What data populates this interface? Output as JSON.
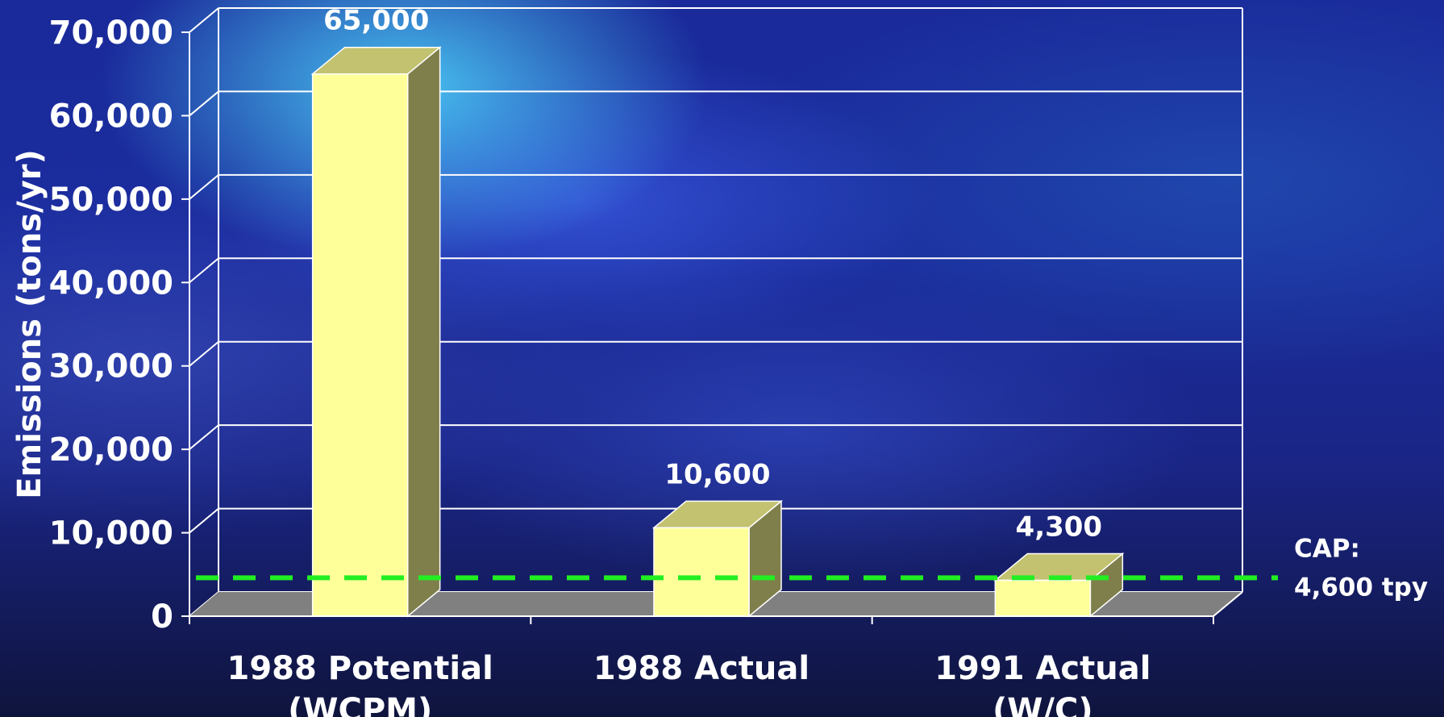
{
  "chart_data": {
    "type": "bar",
    "ylabel": "Emissions (tons/yr)",
    "ylim": [
      0,
      70000
    ],
    "yticks": [
      {
        "value": 0,
        "label": "0"
      },
      {
        "value": 10000,
        "label": "10,000"
      },
      {
        "value": 20000,
        "label": "20,000"
      },
      {
        "value": 30000,
        "label": "30,000"
      },
      {
        "value": 40000,
        "label": "40,000"
      },
      {
        "value": 50000,
        "label": "50,000"
      },
      {
        "value": 60000,
        "label": "60,000"
      },
      {
        "value": 70000,
        "label": "70,000"
      }
    ],
    "categories": [
      [
        "1988 Potential",
        "(WCPM)"
      ],
      [
        "1988 Actual"
      ],
      [
        "1991 Actual",
        "(W/C)"
      ]
    ],
    "values": [
      65000,
      10600,
      4300
    ],
    "data_labels": [
      "65,000",
      "10,600",
      "4,300"
    ],
    "reference_line": {
      "value": 4600,
      "label_lines": [
        "CAP:",
        "4,600 tpy"
      ],
      "color": "#22ee22",
      "style": "dashed"
    },
    "grid": true,
    "three_d": true,
    "colors": {
      "bar_front": "#ffff99",
      "bar_top": "#c2c270",
      "bar_side": "#7f7f4c",
      "floor": "#808080",
      "gridline": "#ffffff",
      "text": "#ffffff"
    }
  }
}
